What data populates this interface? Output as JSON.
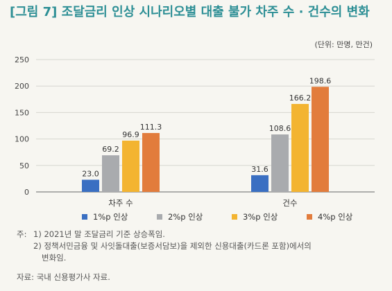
{
  "title": "[그림 7] 조달금리 인상 시나리오별 대출 불가 차주 수 · 건수의 변화",
  "unit": "(단위: 만명, 만건)",
  "chart_data": {
    "type": "bar",
    "categories": [
      "차주 수",
      "건수"
    ],
    "series": [
      {
        "name": "1%p 인상",
        "values": [
          23.0,
          31.6
        ],
        "color": "#3a6fc2"
      },
      {
        "name": "2%p 인상",
        "values": [
          69.2,
          108.6
        ],
        "color": "#a9abae"
      },
      {
        "name": "3%p 인상",
        "values": [
          96.9,
          166.2
        ],
        "color": "#f3b431"
      },
      {
        "name": "4%p 인상",
        "values": [
          111.3,
          198.6
        ],
        "color": "#e27c3c"
      }
    ],
    "ylim": [
      0,
      250
    ],
    "yticks": [
      "0",
      "50",
      "100",
      "150",
      "200",
      "250"
    ],
    "grid": true,
    "legend": "bottom"
  },
  "notes": {
    "label": "주:",
    "items": [
      "1) 2021년 말 조달금리 기준 상승폭임.",
      "2) 정책서민금융 및 사잇돌대출(보증서담보)을 제외한 신용대출(카드론 포함)에서의",
      "변화임."
    ]
  },
  "source": "자료: 국내 신용평가사 자료."
}
